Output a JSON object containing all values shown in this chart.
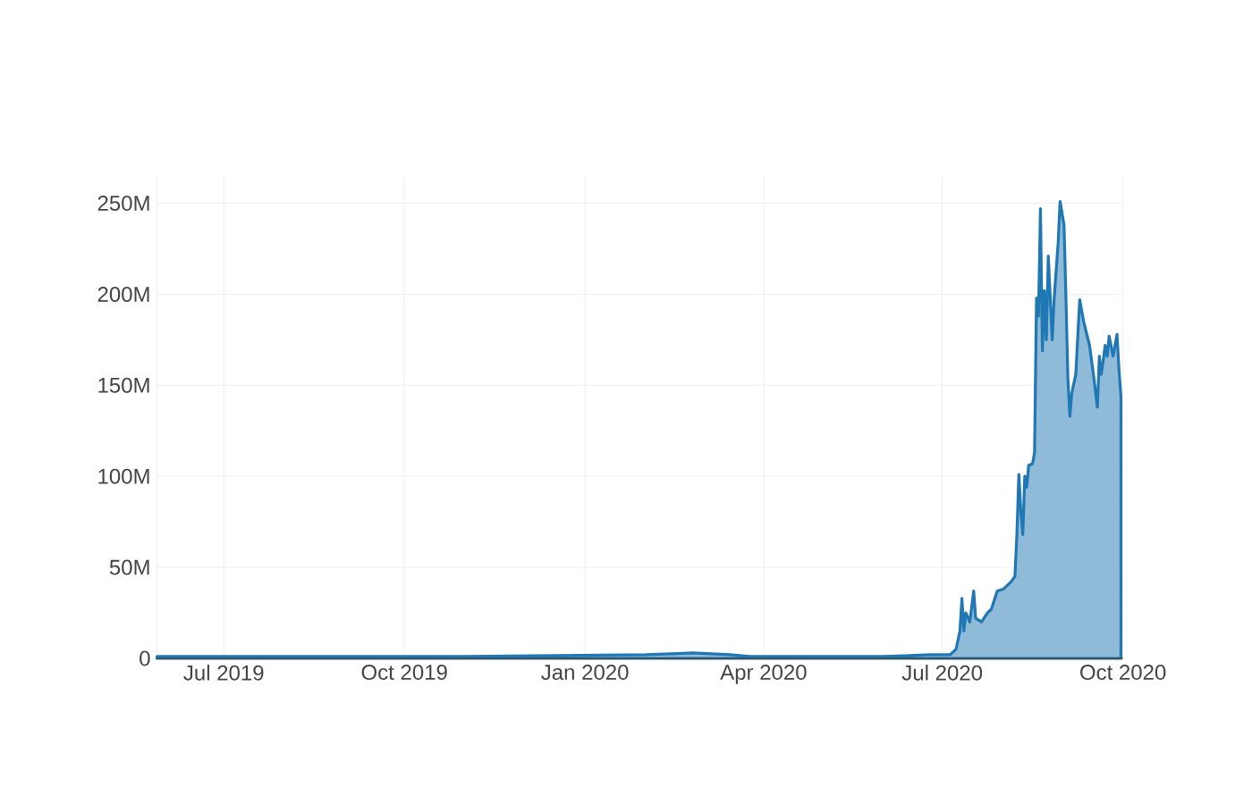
{
  "chart_data": {
    "type": "area",
    "color": "#1f77b4",
    "grid": true,
    "x": [
      "2019-05-28",
      "2019-08-01",
      "2019-11-01",
      "2020-02-01",
      "2020-02-25",
      "2020-03-15",
      "2020-03-25",
      "2020-06-01",
      "2020-06-25",
      "2020-07-01",
      "2020-07-05",
      "2020-07-08",
      "2020-07-10",
      "2020-07-11",
      "2020-07-12",
      "2020-07-13",
      "2020-07-15",
      "2020-07-17",
      "2020-07-18",
      "2020-07-21",
      "2020-07-24",
      "2020-07-26",
      "2020-07-29",
      "2020-08-01",
      "2020-08-05",
      "2020-08-07",
      "2020-08-08",
      "2020-08-09",
      "2020-08-10",
      "2020-08-11",
      "2020-08-12",
      "2020-08-13",
      "2020-08-14",
      "2020-08-16",
      "2020-08-17",
      "2020-08-18",
      "2020-08-19",
      "2020-08-20",
      "2020-08-21",
      "2020-08-22",
      "2020-08-23",
      "2020-08-24",
      "2020-08-26",
      "2020-08-27",
      "2020-08-29",
      "2020-08-30",
      "2020-09-01",
      "2020-09-02",
      "2020-09-03",
      "2020-09-04",
      "2020-09-05",
      "2020-09-07",
      "2020-09-09",
      "2020-09-11",
      "2020-09-14",
      "2020-09-16",
      "2020-09-18",
      "2020-09-19",
      "2020-09-20",
      "2020-09-22",
      "2020-09-23",
      "2020-09-24",
      "2020-09-26",
      "2020-09-28",
      "2020-09-29",
      "2020-09-30"
    ],
    "values": [
      1000000,
      1000000,
      1000000,
      2000000,
      3000000,
      2000000,
      1000000,
      1000000,
      2000000,
      2000000,
      2000000,
      5000000,
      15000000,
      33000000,
      15000000,
      25000000,
      20000000,
      37000000,
      22000000,
      20000000,
      25000000,
      27000000,
      37000000,
      38000000,
      42000000,
      45000000,
      68000000,
      101000000,
      81000000,
      68000000,
      100000000,
      94000000,
      106000000,
      107000000,
      113000000,
      198000000,
      188000000,
      247000000,
      169000000,
      202000000,
      175000000,
      221000000,
      175000000,
      198000000,
      228000000,
      251000000,
      238000000,
      198000000,
      153000000,
      133000000,
      146000000,
      156000000,
      197000000,
      185000000,
      172000000,
      156000000,
      138000000,
      166000000,
      156000000,
      172000000,
      166000000,
      177000000,
      166000000,
      178000000,
      159000000,
      144000000
    ],
    "xlim": [
      "2019-05-28",
      "2020-10-01"
    ],
    "xticks": [
      {
        "value": "2019-07-01",
        "label": "Jul 2019"
      },
      {
        "value": "2019-10-01",
        "label": "Oct 2019"
      },
      {
        "value": "2020-01-01",
        "label": "Jan 2020"
      },
      {
        "value": "2020-04-01",
        "label": "Apr 2020"
      },
      {
        "value": "2020-07-01",
        "label": "Jul 2020"
      },
      {
        "value": "2020-10-01",
        "label": "Oct 2020"
      }
    ],
    "ylim": [
      0,
      265000000
    ],
    "yticks": [
      0,
      {
        "value": 50000000,
        "label": "50M"
      },
      {
        "value": 100000000,
        "label": "100M"
      },
      {
        "value": 150000000,
        "label": "150M"
      },
      {
        "value": 200000000,
        "label": "200M"
      },
      {
        "value": 250000000,
        "label": "250M"
      }
    ]
  }
}
